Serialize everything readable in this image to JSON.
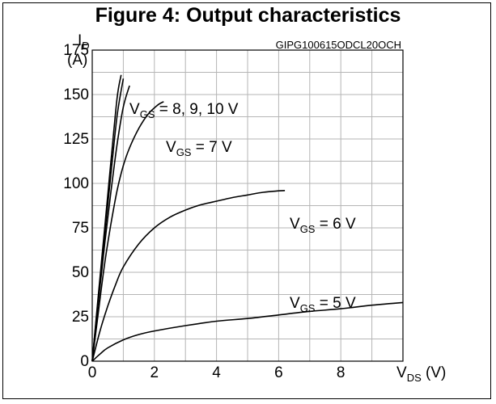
{
  "title": "Figure 4: Output characteristics",
  "chart_data": {
    "type": "line",
    "title": "Figure 4: Output characteristics",
    "code": "GIPG100615ODCL20OCH",
    "ylabel": {
      "main": "I",
      "sub": "D",
      "unit": "(A)"
    },
    "xlabel": {
      "main": "V",
      "sub": "DS",
      "unit": " (V)"
    },
    "xlim": [
      0,
      10
    ],
    "ylim": [
      0,
      175
    ],
    "xticks": [
      0,
      2,
      4,
      6,
      8
    ],
    "yticks": [
      0,
      25,
      50,
      75,
      100,
      125,
      150,
      175
    ],
    "grid": true,
    "series": [
      {
        "name": "VGS = 10 V",
        "points": [
          [
            0,
            0
          ],
          [
            0.2,
            38
          ],
          [
            0.4,
            75
          ],
          [
            0.6,
            112
          ],
          [
            0.8,
            148
          ],
          [
            0.93,
            161
          ]
        ]
      },
      {
        "name": "VGS = 9 V",
        "points": [
          [
            0,
            0
          ],
          [
            0.2,
            36
          ],
          [
            0.4,
            71
          ],
          [
            0.6,
            105
          ],
          [
            0.8,
            138
          ],
          [
            1.0,
            159
          ]
        ]
      },
      {
        "name": "VGS = 8 V",
        "points": [
          [
            0,
            0
          ],
          [
            0.2,
            34
          ],
          [
            0.4,
            66
          ],
          [
            0.6,
            95
          ],
          [
            0.8,
            122
          ],
          [
            1.0,
            143
          ],
          [
            1.2,
            155
          ]
        ]
      },
      {
        "name": "VGS = 7 V",
        "points": [
          [
            0,
            0
          ],
          [
            0.2,
            28
          ],
          [
            0.4,
            55
          ],
          [
            0.6,
            77
          ],
          [
            0.8,
            96
          ],
          [
            1.0,
            110
          ],
          [
            1.2,
            120
          ],
          [
            1.5,
            131
          ],
          [
            1.8,
            139
          ],
          [
            2.1,
            144
          ],
          [
            2.3,
            146
          ]
        ]
      },
      {
        "name": "VGS = 6 V",
        "points": [
          [
            0,
            0
          ],
          [
            0.25,
            17
          ],
          [
            0.5,
            31
          ],
          [
            0.75,
            43
          ],
          [
            1.0,
            53
          ],
          [
            1.5,
            66
          ],
          [
            2.0,
            75
          ],
          [
            2.5,
            81
          ],
          [
            3.0,
            85
          ],
          [
            3.5,
            88
          ],
          [
            4.0,
            90
          ],
          [
            4.5,
            92
          ],
          [
            5.0,
            93.5
          ],
          [
            5.5,
            95
          ],
          [
            6.0,
            95.8
          ],
          [
            6.2,
            96
          ]
        ]
      },
      {
        "name": "VGS = 5 V",
        "points": [
          [
            0,
            0
          ],
          [
            0.25,
            4
          ],
          [
            0.5,
            7.5
          ],
          [
            1.0,
            12
          ],
          [
            1.5,
            15
          ],
          [
            2.0,
            17
          ],
          [
            3.0,
            20
          ],
          [
            4.0,
            22.5
          ],
          [
            5.0,
            24
          ],
          [
            6.0,
            26
          ],
          [
            7.0,
            28
          ],
          [
            8.0,
            29.5
          ],
          [
            9.0,
            31.5
          ],
          [
            10.0,
            33
          ]
        ]
      }
    ],
    "annotations": [
      {
        "main": "V",
        "sub": "GS",
        "rest": " = 8, 9, 10 V"
      },
      {
        "main": "V",
        "sub": "GS",
        "rest": " = 7 V"
      },
      {
        "main": "V",
        "sub": "GS",
        "rest": " = 6 V"
      },
      {
        "main": "V",
        "sub": "GS",
        "rest": " = 5 V"
      }
    ]
  }
}
